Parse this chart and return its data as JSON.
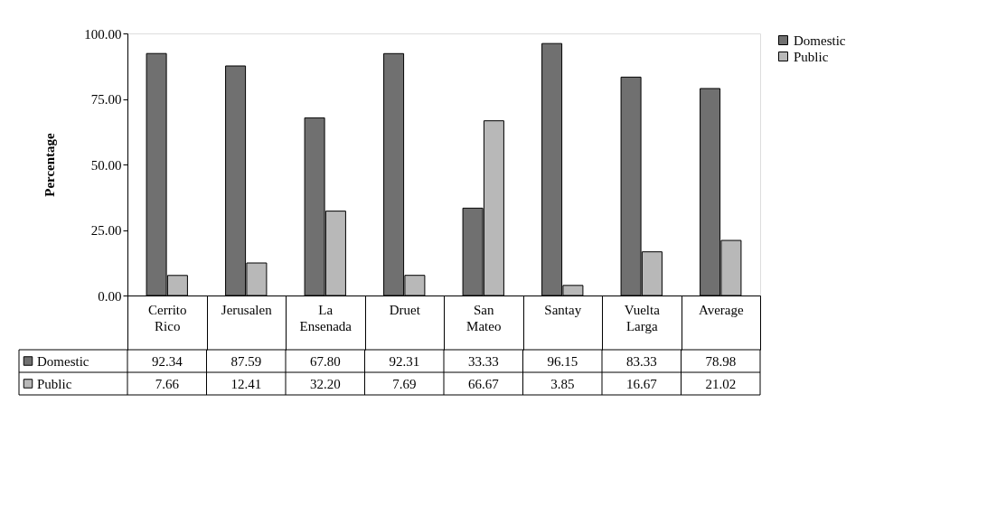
{
  "chart_data": {
    "type": "bar",
    "ylabel": "Percentage",
    "categories": [
      "Cerrito Rico",
      "Jerusalen",
      "La Ensenada",
      "Druet",
      "San Mateo",
      "Santay",
      "Vuelta Larga",
      "Average"
    ],
    "series": [
      {
        "name": "Domestic",
        "color": "#707070",
        "values": [
          92.34,
          87.59,
          67.8,
          92.31,
          33.33,
          96.15,
          83.33,
          78.98
        ],
        "value_labels": [
          "92.34",
          "87.59",
          "67.80",
          "92.31",
          "33.33",
          "96.15",
          "83.33",
          "78.98"
        ]
      },
      {
        "name": "Public",
        "color": "#b8b8b8",
        "values": [
          7.66,
          12.41,
          32.2,
          7.69,
          66.67,
          3.85,
          16.67,
          21.02
        ],
        "value_labels": [
          "7.66",
          "12.41",
          "32.20",
          "7.69",
          "66.67",
          "3.85",
          "16.67",
          "21.02"
        ]
      }
    ],
    "ylim": [
      0,
      100
    ],
    "yticks": [
      {
        "value": 0,
        "label": "0.00"
      },
      {
        "value": 25,
        "label": "25.00"
      },
      {
        "value": 50,
        "label": "50.00"
      },
      {
        "value": 75,
        "label": "75.00"
      },
      {
        "value": 100,
        "label": "100.00"
      }
    ],
    "grid": false,
    "legend": "right"
  }
}
